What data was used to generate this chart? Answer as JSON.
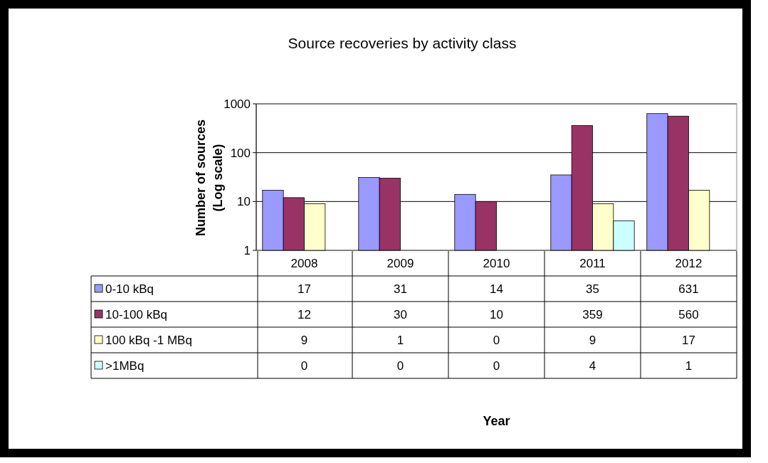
{
  "chart_data": {
    "type": "bar",
    "title": "Source recoveries by activity class",
    "annotations": [
      "Year"
    ],
    "ylabel": "Number of sources (Log scale)",
    "categories": [
      "2008",
      "2009",
      "2010",
      "2011",
      "2012"
    ],
    "series": [
      {
        "name": "0-10 kBq",
        "color": "#9999ff",
        "values": [
          17,
          31,
          14,
          35,
          631
        ],
        "value_labels": [
          "17",
          "31",
          "14",
          "35",
          "631"
        ]
      },
      {
        "name": "10-100 kBq",
        "color": "#993366",
        "values": [
          12,
          30,
          10,
          359,
          560
        ],
        "value_labels": [
          "12",
          "30",
          "10",
          "359",
          "560"
        ]
      },
      {
        "name": "100 kBq -1 MBq",
        "color": "#ffffcc",
        "values": [
          9,
          1,
          null,
          9,
          17
        ],
        "value_labels": [
          "9",
          "1",
          "0",
          "9",
          "17"
        ]
      },
      {
        "name": ">1MBq",
        "color": "#ccffff",
        "values": [
          null,
          null,
          null,
          4,
          1
        ],
        "value_labels": [
          "0",
          "0",
          "0",
          "4",
          "1"
        ]
      }
    ],
    "log": "y",
    "ylim": [
      1,
      1000
    ],
    "yticks": [
      1,
      10,
      100,
      1000
    ],
    "grid": "y",
    "legend": "bottom"
  }
}
